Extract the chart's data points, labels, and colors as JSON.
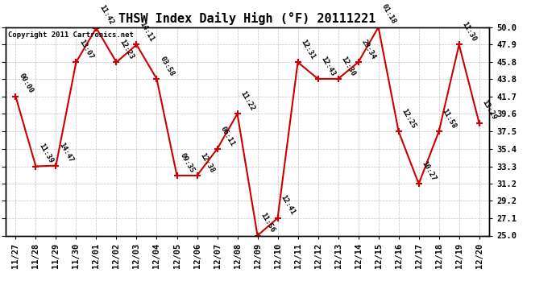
{
  "title": "THSW Index Daily High (°F) 20111221",
  "copyright_text": "Copyright 2011 Cartronics.net",
  "x_labels": [
    "11/27",
    "11/28",
    "11/29",
    "11/30",
    "12/01",
    "12/02",
    "12/03",
    "12/04",
    "12/05",
    "12/06",
    "12/07",
    "12/08",
    "12/09",
    "12/10",
    "12/11",
    "12/12",
    "12/13",
    "12/14",
    "12/15",
    "12/16",
    "12/17",
    "12/18",
    "12/19",
    "12/20"
  ],
  "y_values": [
    41.7,
    33.3,
    33.4,
    45.8,
    49.9,
    45.8,
    47.9,
    43.8,
    32.2,
    32.2,
    35.4,
    39.6,
    25.0,
    27.1,
    45.8,
    43.8,
    43.8,
    45.8,
    50.0,
    37.5,
    31.2,
    37.5,
    47.9,
    38.5
  ],
  "point_labels": [
    "00:00",
    "11:39",
    "14:47",
    "13:07",
    "11:42",
    "12:23",
    "14:11",
    "03:58",
    "09:35",
    "12:38",
    "06:11",
    "11:22",
    "11:56",
    "12:41",
    "12:31",
    "12:43",
    "12:30",
    "29:34",
    "01:18",
    "12:25",
    "10:27",
    "11:58",
    "11:30",
    "13:29"
  ],
  "ylim_min": 25.0,
  "ylim_max": 50.0,
  "yticks": [
    25.0,
    27.1,
    29.2,
    31.2,
    33.3,
    35.4,
    37.5,
    39.6,
    41.7,
    43.8,
    45.8,
    47.9,
    50.0
  ],
  "line_color": "#cc0000",
  "marker_color": "#cc0000",
  "bg_color": "#ffffff",
  "grid_color": "#bbbbbb",
  "title_fontsize": 11,
  "label_fontsize": 6.5,
  "tick_fontsize": 7.5,
  "copyright_fontsize": 6.5
}
